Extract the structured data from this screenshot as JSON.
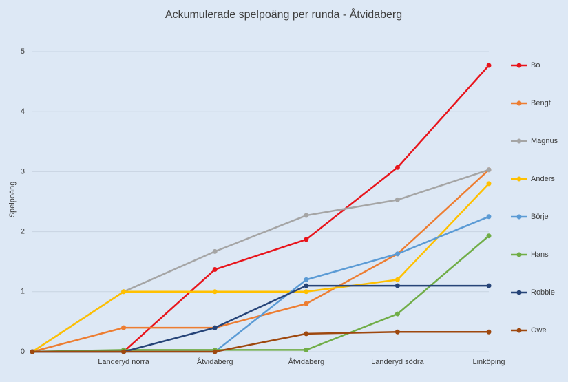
{
  "chart_data": {
    "type": "line",
    "title": "Ackumulerade spelpoäng per runda - Åtvidaberg",
    "y_label": "Spelpoäng",
    "categories": [
      null,
      "Landeryd norra",
      "Åtvidaberg",
      "Åtvidaberg",
      "Landeryd södra",
      "Linköping"
    ],
    "series": [
      {
        "name": "Bo",
        "color": "#e8141b",
        "values": [
          0,
          0,
          1.37,
          1.87,
          3.07,
          4.77
        ]
      },
      {
        "name": "Bengt",
        "color": "#ed7d31",
        "values": [
          0,
          0.4,
          0.4,
          0.8,
          1.63,
          3.03
        ]
      },
      {
        "name": "Magnus",
        "color": "#a5a5a5",
        "values": [
          0,
          1,
          1.67,
          2.27,
          2.53,
          3.03
        ]
      },
      {
        "name": "Anders",
        "color": "#ffc000",
        "values": [
          0,
          1,
          1,
          1,
          1.2,
          2.8
        ]
      },
      {
        "name": "Börje",
        "color": "#5b9bd5",
        "values": [
          0,
          0,
          0,
          1.2,
          1.63,
          2.25
        ]
      },
      {
        "name": "Hans",
        "color": "#70ad47",
        "values": [
          0,
          0.03,
          0.03,
          0.03,
          0.63,
          1.93
        ]
      },
      {
        "name": "Robbie",
        "color": "#264478",
        "values": [
          0,
          0,
          0.4,
          1.1,
          1.1,
          1.1
        ]
      },
      {
        "name": "Owe",
        "color": "#9e480e",
        "values": [
          0,
          0,
          0,
          0.3,
          0.33,
          0.33
        ]
      }
    ],
    "ylim": [
      0,
      5
    ],
    "yticks": [
      0,
      1,
      2,
      3,
      4,
      5
    ],
    "grid": true,
    "legend": "right"
  }
}
